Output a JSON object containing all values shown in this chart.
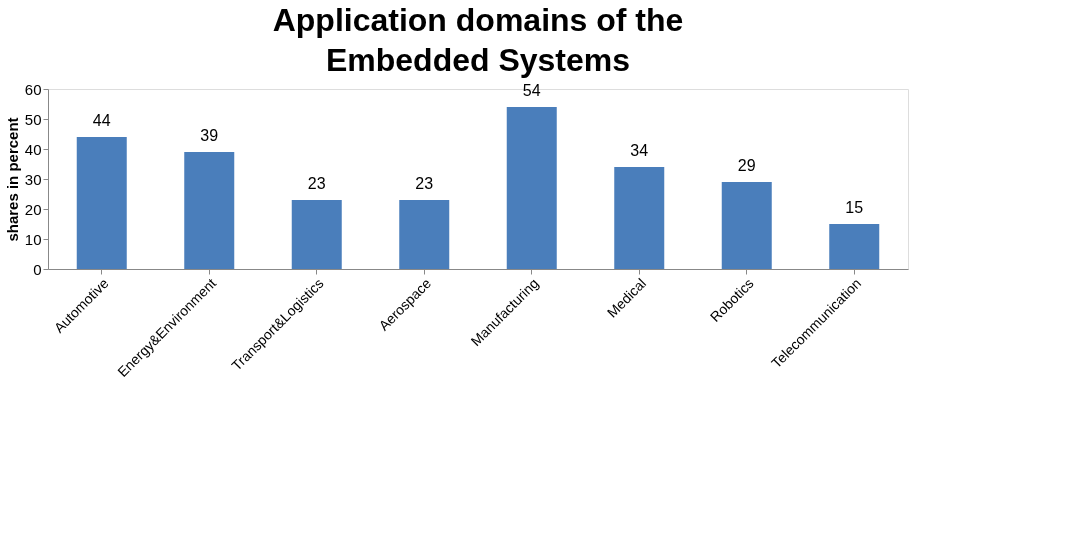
{
  "chart_data": {
    "type": "bar",
    "title": "Application domains of the Embedded Systems",
    "ylabel": "shares in percent",
    "categories": [
      "Automotive",
      "Energy&Environment",
      "Transport&Logistics",
      "Aerospace",
      "Manufacturing",
      "Medical",
      "Robotics",
      "Telecommunication"
    ],
    "values": [
      44,
      39,
      23,
      23,
      54,
      34,
      29,
      15
    ],
    "color": "#4a7ebb",
    "ylim": [
      0,
      60
    ],
    "yticks": [
      0,
      10,
      20,
      30,
      40,
      50,
      60
    ],
    "data_labels": true,
    "grid": false
  }
}
